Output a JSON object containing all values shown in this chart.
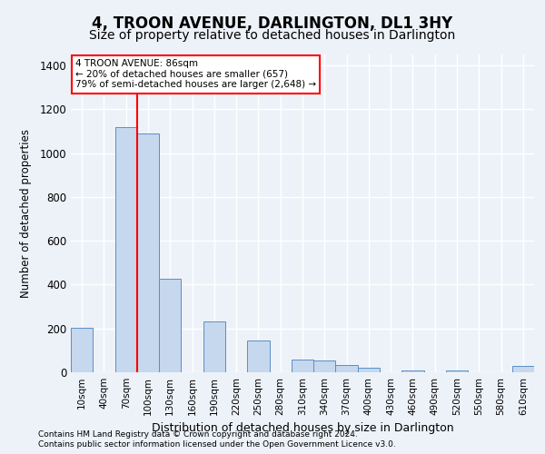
{
  "title": "4, TROON AVENUE, DARLINGTON, DL1 3HY",
  "subtitle": "Size of property relative to detached houses in Darlington",
  "xlabel": "Distribution of detached houses by size in Darlington",
  "ylabel": "Number of detached properties",
  "footnote1": "Contains HM Land Registry data © Crown copyright and database right 2024.",
  "footnote2": "Contains public sector information licensed under the Open Government Licence v3.0.",
  "categories": [
    "10sqm",
    "40sqm",
    "70sqm",
    "100sqm",
    "130sqm",
    "160sqm",
    "190sqm",
    "220sqm",
    "250sqm",
    "280sqm",
    "310sqm",
    "340sqm",
    "370sqm",
    "400sqm",
    "430sqm",
    "460sqm",
    "490sqm",
    "520sqm",
    "550sqm",
    "580sqm",
    "610sqm"
  ],
  "values": [
    205,
    0,
    1120,
    1090,
    425,
    0,
    230,
    0,
    145,
    0,
    60,
    55,
    35,
    20,
    0,
    10,
    0,
    10,
    0,
    0,
    30
  ],
  "bar_color": "#c5d8ed",
  "bar_edgecolor": "#5a8fc5",
  "red_line_x": 2.5,
  "annotation_text1": "4 TROON AVENUE: 86sqm",
  "annotation_text2": "← 20% of detached houses are smaller (657)",
  "annotation_text3": "79% of semi-detached houses are larger (2,648) →",
  "annotation_box_color": "white",
  "annotation_box_edgecolor": "red",
  "red_line_color": "red",
  "ylim": [
    0,
    1450
  ],
  "yticks": [
    0,
    200,
    400,
    600,
    800,
    1000,
    1200,
    1400
  ],
  "bg_color": "#edf2f9",
  "plot_bg_color": "#edf2f9",
  "grid_color": "white",
  "title_fontsize": 12,
  "subtitle_fontsize": 10
}
